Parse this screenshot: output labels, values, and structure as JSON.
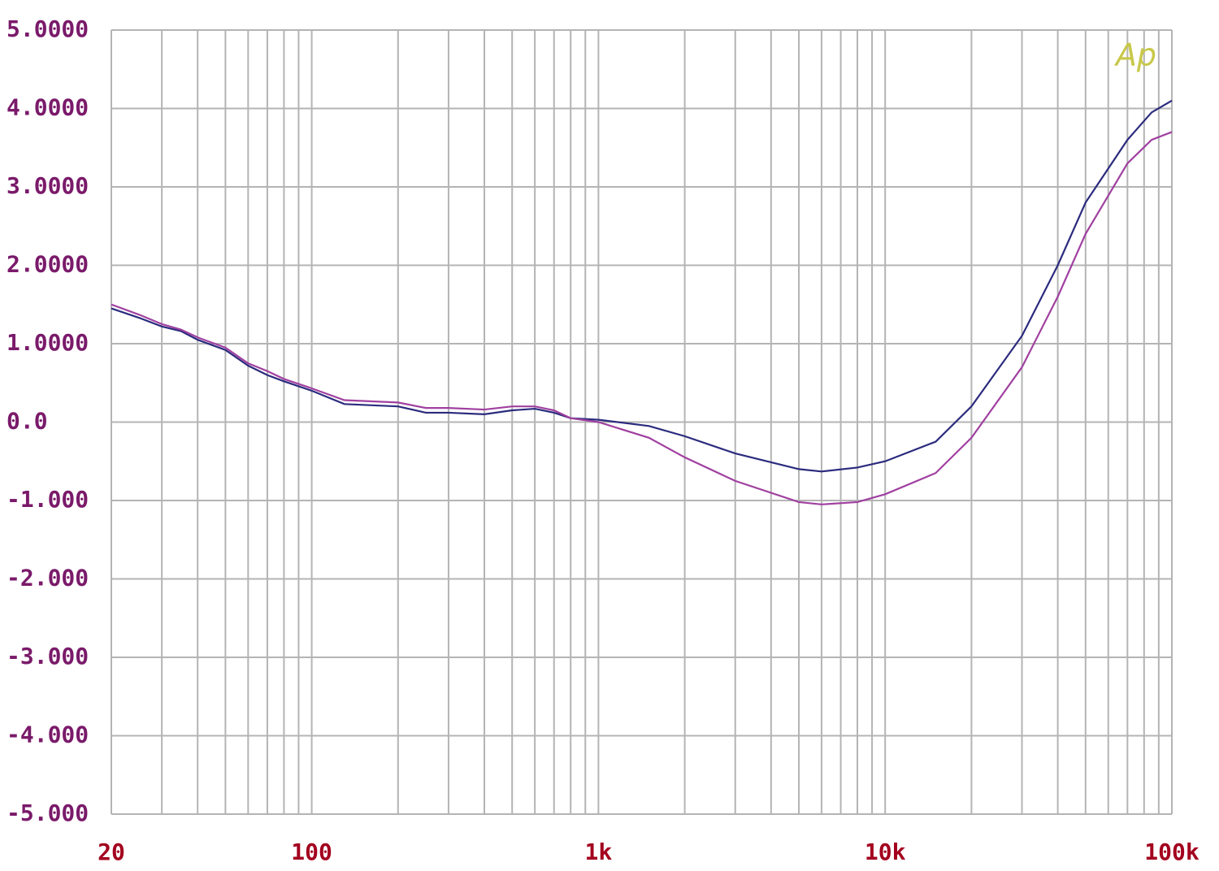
{
  "chart_data": {
    "type": "line",
    "xscale": "log",
    "grid": true,
    "annotation": "Ap",
    "annotation_color": "#c8c84a",
    "x": [
      20,
      25,
      30,
      35,
      40,
      50,
      60,
      70,
      80,
      100,
      130,
      200,
      250,
      300,
      400,
      500,
      600,
      700,
      800,
      1000,
      1500,
      2000,
      3000,
      5000,
      6000,
      8000,
      10000,
      15000,
      20000,
      30000,
      40000,
      50000,
      70000,
      85000,
      100000
    ],
    "series": [
      {
        "color": "#2b2b7e",
        "values": [
          1.45,
          1.33,
          1.22,
          1.16,
          1.05,
          0.92,
          0.72,
          0.6,
          0.52,
          0.4,
          0.23,
          0.2,
          0.12,
          0.12,
          0.1,
          0.15,
          0.17,
          0.12,
          0.05,
          0.03,
          -0.05,
          -0.18,
          -0.4,
          -0.6,
          -0.63,
          -0.58,
          -0.5,
          -0.25,
          0.2,
          1.1,
          2.0,
          2.8,
          3.6,
          3.95,
          4.1
        ]
      },
      {
        "color": "#a040a0",
        "values": [
          1.5,
          1.37,
          1.25,
          1.18,
          1.08,
          0.95,
          0.75,
          0.65,
          0.55,
          0.43,
          0.28,
          0.25,
          0.18,
          0.18,
          0.16,
          0.2,
          0.2,
          0.15,
          0.05,
          0.0,
          -0.2,
          -0.45,
          -0.75,
          -1.02,
          -1.05,
          -1.02,
          -0.92,
          -0.65,
          -0.2,
          0.7,
          1.6,
          2.4,
          3.3,
          3.6,
          3.7
        ]
      }
    ],
    "xlim": [
      20,
      100000
    ],
    "xticks": [
      20,
      100,
      {
        "value": 1000,
        "label": "1k"
      },
      {
        "value": 10000,
        "label": "10k"
      },
      {
        "value": 100000,
        "label": "100k"
      }
    ],
    "xminorticks": [
      30,
      40,
      50,
      60,
      70,
      80,
      90,
      200,
      300,
      400,
      500,
      600,
      700,
      800,
      900,
      2000,
      3000,
      4000,
      5000,
      6000,
      7000,
      8000,
      9000,
      20000,
      30000,
      40000,
      50000,
      60000,
      70000,
      80000,
      90000
    ],
    "ylim": [
      -5,
      5
    ],
    "yticks": [
      {
        "value": 5,
        "label": "5.0000"
      },
      {
        "value": 4,
        "label": "4.0000"
      },
      {
        "value": 3,
        "label": "3.0000"
      },
      {
        "value": 2,
        "label": "2.0000"
      },
      {
        "value": 1,
        "label": "1.0000"
      },
      {
        "value": 0,
        "label": "0.0"
      },
      {
        "value": -1,
        "label": "-1.000"
      },
      {
        "value": -2,
        "label": "-2.000"
      },
      {
        "value": -3,
        "label": "-3.000"
      },
      {
        "value": -4,
        "label": "-4.000"
      },
      {
        "value": -5,
        "label": "-5.000"
      }
    ]
  }
}
